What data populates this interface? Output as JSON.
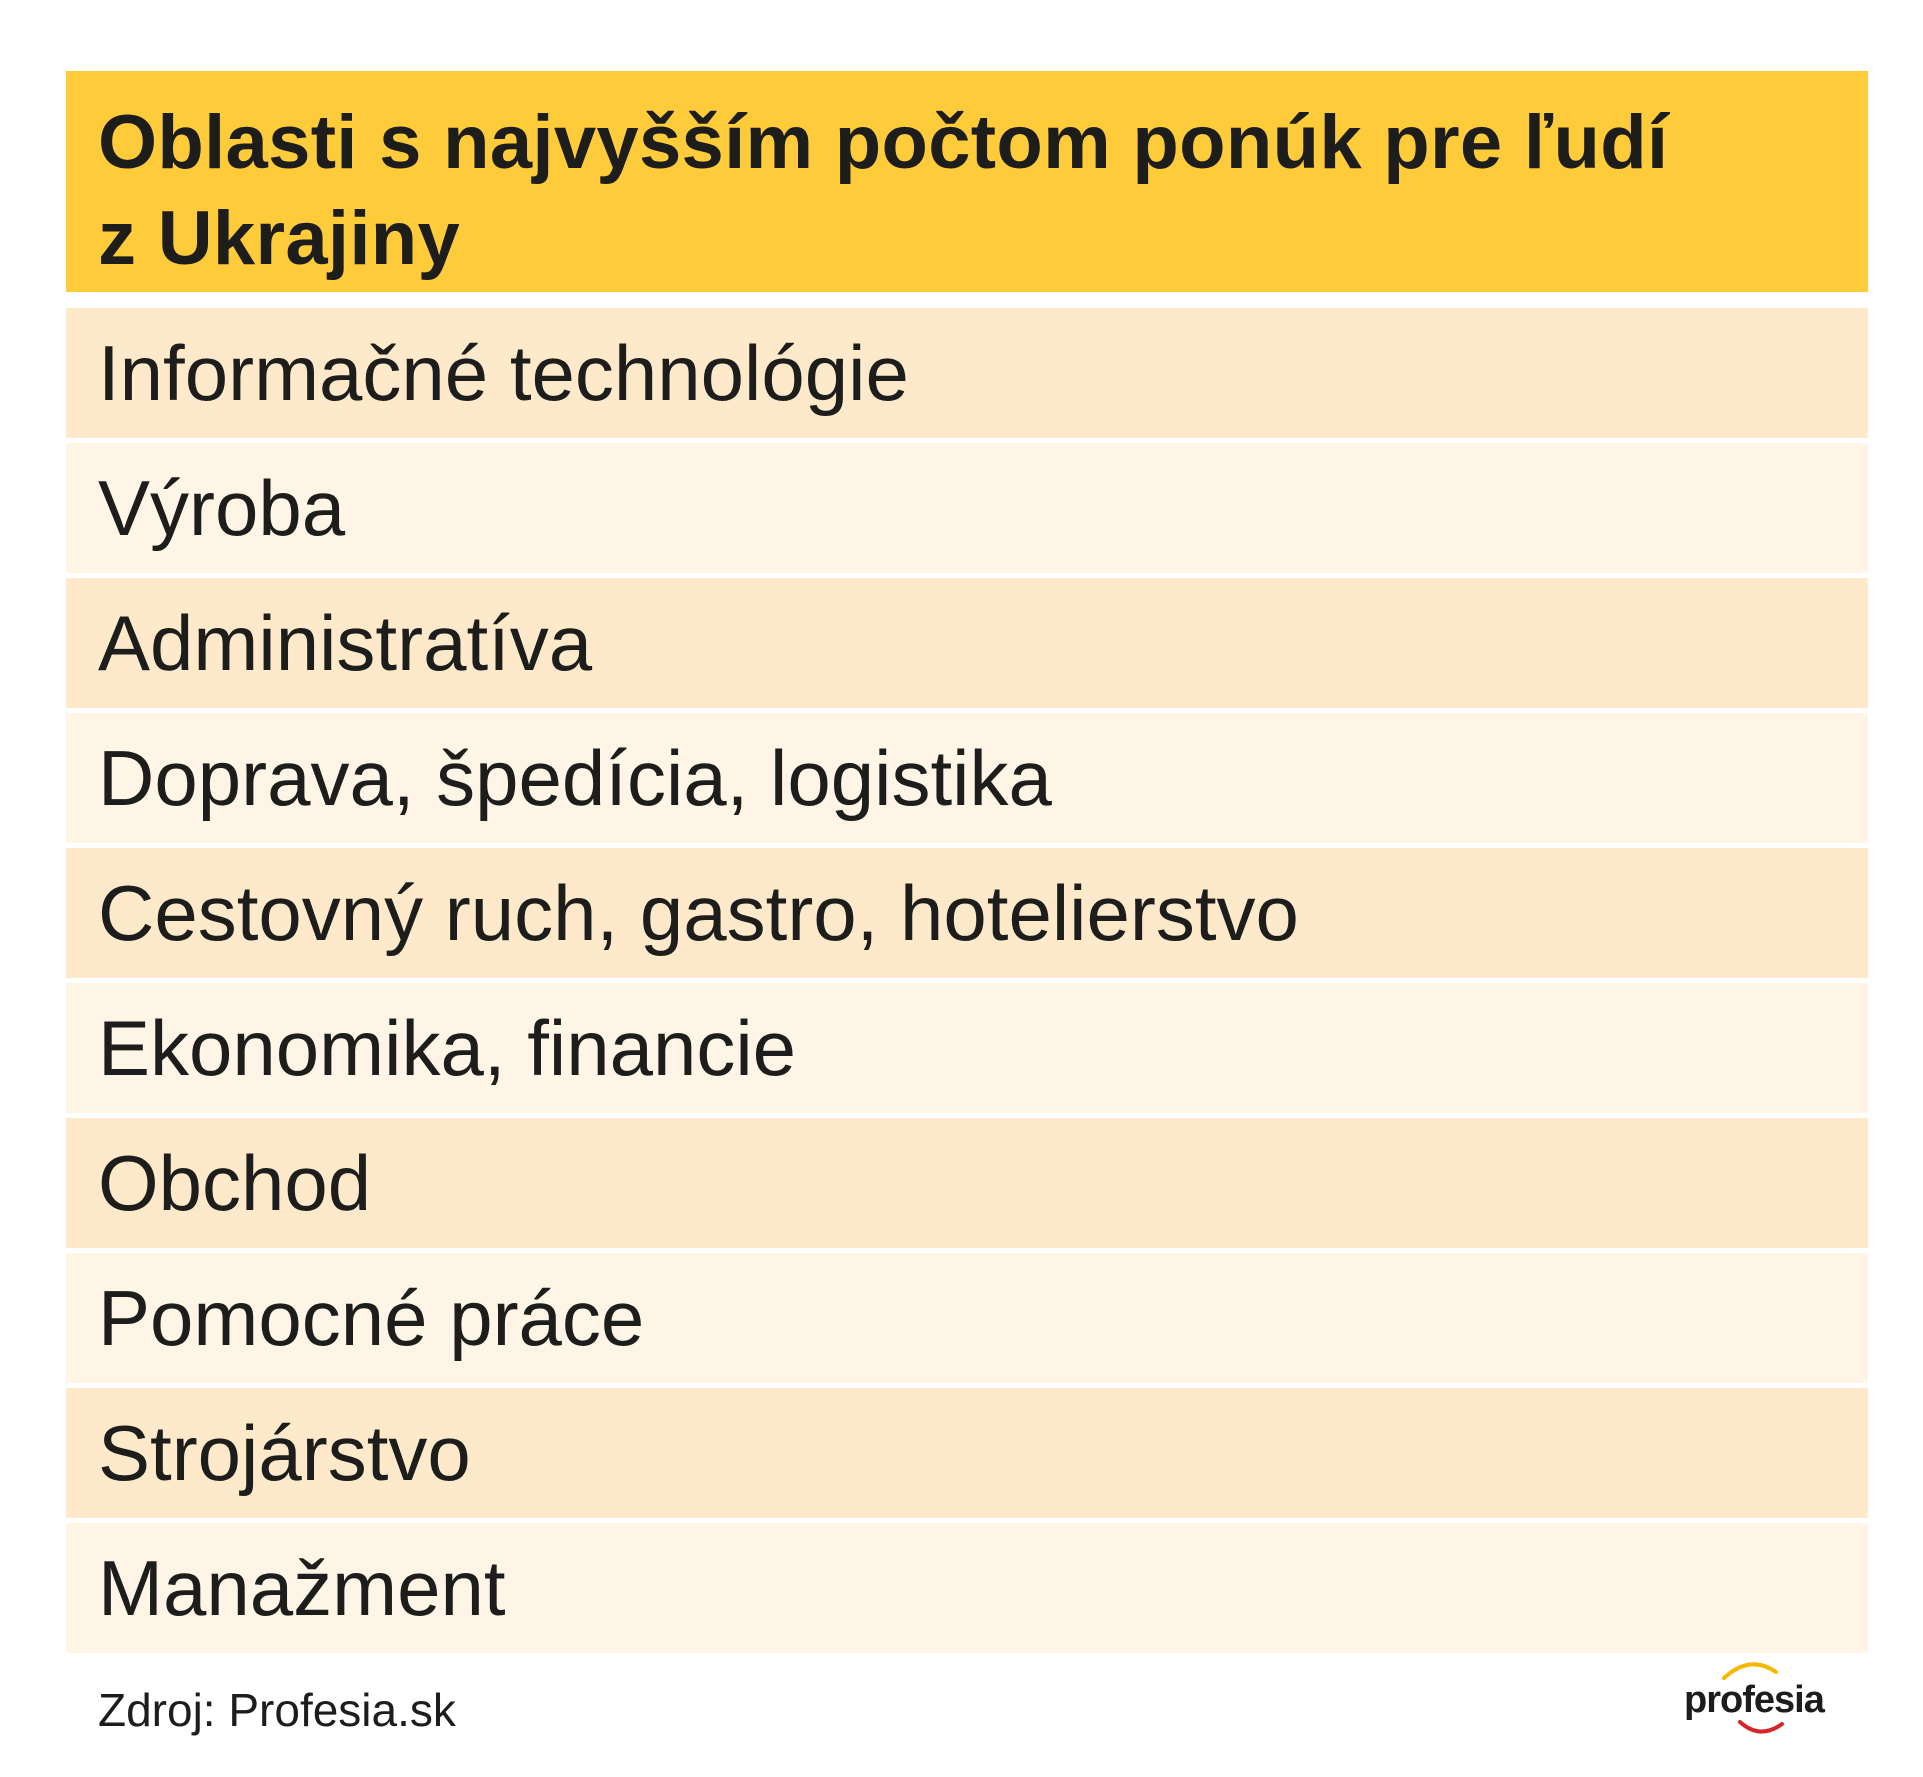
{
  "title_line1": "Oblasti s najvyšším počtom ponúk pre ľudí",
  "title_line2": "z Ukrajiny",
  "items": [
    "Informačné technológie",
    "Výroba",
    "Administratíva",
    "Doprava, špedícia, logistika",
    "Cestovný ruch, gastro, hotelierstvo",
    "Ekonomika, financie",
    "Obchod",
    "Pomocné práce",
    "Strojárstvo",
    "Manažment"
  ],
  "source": "Zdroj: Profesia.sk",
  "logo": {
    "text": "profesia",
    "icon": "profesia-logo-arcs"
  },
  "colors": {
    "header": "#fecb3a",
    "row_odd": "#feeacb",
    "row_even": "#fef5e6",
    "logo_arc_top": "#f5b800",
    "logo_arc_bottom": "#d7262b"
  }
}
